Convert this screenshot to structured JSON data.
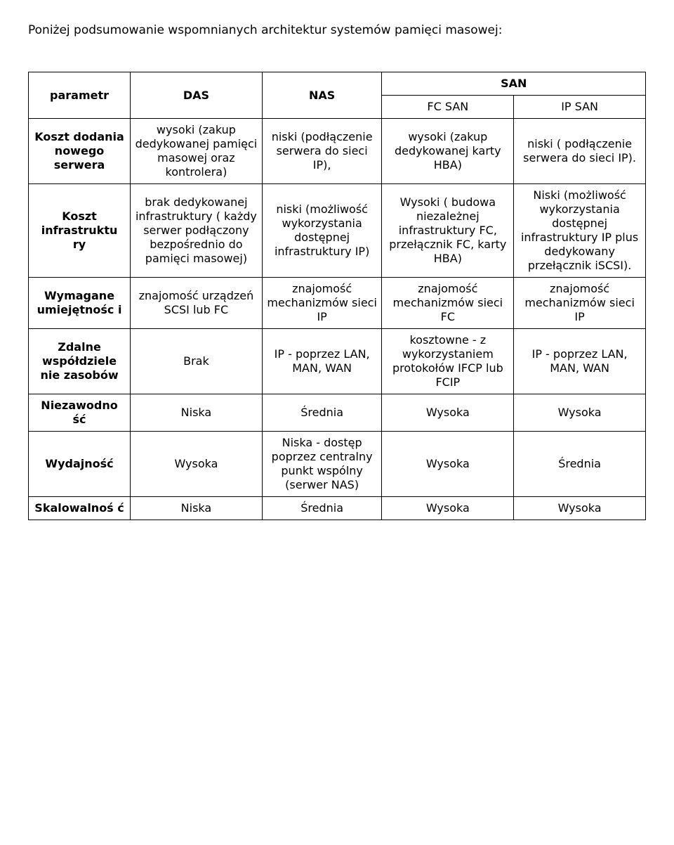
{
  "intro": "Poniżej podsumowanie wspomnianych architektur systemów pamięci masowej:",
  "headers": {
    "parametr": "parametr",
    "das": "DAS",
    "nas": "NAS",
    "san": "SAN",
    "fc_san": "FC SAN",
    "ip_san": "IP SAN"
  },
  "rows": {
    "koszt_dodania": {
      "label": "Koszt dodania nowego serwera",
      "das": "wysoki (zakup dedykowanej pamięci masowej oraz kontrolera)",
      "nas": "niski (podłączenie serwera do sieci IP),",
      "fc": "wysoki (zakup dedykowanej karty HBA)",
      "ip": "niski ( podłączenie serwera do sieci IP)."
    },
    "koszt_infra": {
      "label": "Koszt infrastruktu ry",
      "das": "brak dedykowanej infrastruktury ( każdy serwer podłączony bezpośrednio do pamięci masowej)",
      "nas": "niski (możliwość wykorzystania dostępnej infrastruktury IP)",
      "fc": "Wysoki ( budowa niezależnej infrastruktury FC, przełącznik FC, karty HBA)",
      "ip": "Niski (możliwość wykorzystania dostępnej infrastruktury IP plus dedykowany przełącznik iSCSI)."
    },
    "wymagane": {
      "label": "Wymagane umiejętnośc i",
      "das": "znajomość urządzeń SCSI lub FC",
      "nas": "znajomość mechanizmów sieci IP",
      "fc": "znajomość mechanizmów sieci FC",
      "ip": "znajomość mechanizmów sieci IP"
    },
    "zdalne": {
      "label": "Zdalne współdziele nie zasobów",
      "das": "Brak",
      "nas": "IP - poprzez LAN, MAN, WAN",
      "fc": "kosztowne - z wykorzystaniem protokołów IFCP lub FCIP",
      "ip": "IP - poprzez LAN, MAN, WAN"
    },
    "niezawodnosc": {
      "label": "Niezawodno ść",
      "das": "Niska",
      "nas": "Średnia",
      "fc": "Wysoka",
      "ip": "Wysoka"
    },
    "wydajnosc": {
      "label": "Wydajność",
      "das": "Wysoka",
      "nas": "Niska - dostęp poprzez centralny punkt wspólny (serwer NAS)",
      "fc": "Wysoka",
      "ip": "Średnia"
    },
    "skalowalnosc": {
      "label": "Skalowalnoś ć",
      "das": "Niska",
      "nas": "Średnia",
      "fc": "Wysoka",
      "ip": "Wysoka"
    }
  },
  "colors": {
    "background": "#ffffff",
    "text": "#000000",
    "border": "#000000"
  }
}
